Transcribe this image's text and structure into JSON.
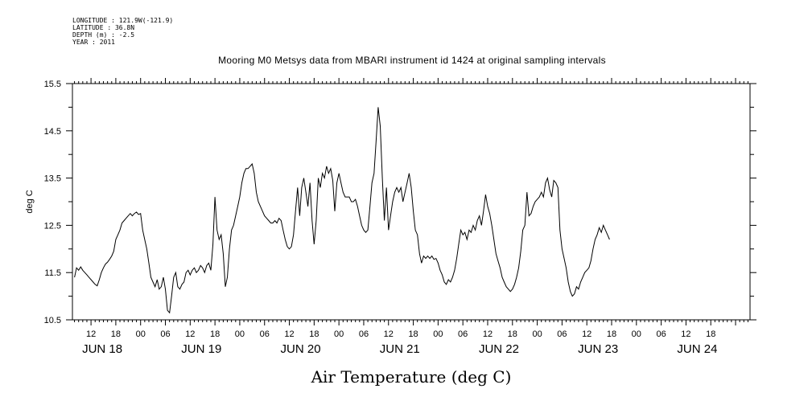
{
  "metadata": {
    "longitude": "LONGITUDE : 121.9W(-121.9)",
    "latitude": "LATITUDE : 36.8N",
    "depth": "DEPTH (m) : -2.5",
    "year": "YEAR : 2011"
  },
  "chart_data": {
    "type": "line",
    "title": "Mooring M0 Metsys data from MBARI instrument id 1424 at original sampling intervals",
    "xlabel": "Air Temperature (deg C)",
    "ylabel": "deg C",
    "ylim": [
      10.5,
      15.5
    ],
    "yticks": [
      "10.5",
      "11.5",
      "12.5",
      "13.5",
      "14.5",
      "15.5"
    ],
    "x_units": "hours since 2011-06-18 00:00",
    "xlim": [
      7.5,
      171.5
    ],
    "hour_tick_labels": [
      {
        "x": 12,
        "label": "12"
      },
      {
        "x": 18,
        "label": "18"
      },
      {
        "x": 24,
        "label": "00"
      },
      {
        "x": 30,
        "label": "06"
      },
      {
        "x": 36,
        "label": "12"
      },
      {
        "x": 42,
        "label": "18"
      },
      {
        "x": 48,
        "label": "00"
      },
      {
        "x": 54,
        "label": "06"
      },
      {
        "x": 60,
        "label": "12"
      },
      {
        "x": 66,
        "label": "18"
      },
      {
        "x": 72,
        "label": "00"
      },
      {
        "x": 78,
        "label": "06"
      },
      {
        "x": 84,
        "label": "12"
      },
      {
        "x": 90,
        "label": "18"
      },
      {
        "x": 96,
        "label": "00"
      },
      {
        "x": 102,
        "label": "06"
      },
      {
        "x": 108,
        "label": "12"
      },
      {
        "x": 114,
        "label": "18"
      },
      {
        "x": 120,
        "label": "00"
      },
      {
        "x": 126,
        "label": "06"
      },
      {
        "x": 132,
        "label": "12"
      },
      {
        "x": 138,
        "label": "18"
      },
      {
        "x": 144,
        "label": "00"
      },
      {
        "x": 150,
        "label": "06"
      },
      {
        "x": 156,
        "label": "12"
      },
      {
        "x": 162,
        "label": "18"
      }
    ],
    "day_labels": [
      {
        "x": 12,
        "label": "JUN 18"
      },
      {
        "x": 36,
        "label": "JUN 19"
      },
      {
        "x": 60,
        "label": "JUN 20"
      },
      {
        "x": 84,
        "label": "JUN 21"
      },
      {
        "x": 108,
        "label": "JUN 22"
      },
      {
        "x": 132,
        "label": "JUN 23"
      },
      {
        "x": 156,
        "label": "JUN 24"
      }
    ],
    "series": [
      {
        "color": "#000000",
        "points": [
          [
            8,
            11.4
          ],
          [
            8.5,
            11.6
          ],
          [
            9,
            11.55
          ],
          [
            9.5,
            11.62
          ],
          [
            10,
            11.55
          ],
          [
            10.5,
            11.5
          ],
          [
            11,
            11.45
          ],
          [
            11.5,
            11.4
          ],
          [
            12,
            11.35
          ],
          [
            12.5,
            11.3
          ],
          [
            13,
            11.25
          ],
          [
            13.5,
            11.22
          ],
          [
            14,
            11.35
          ],
          [
            14.5,
            11.5
          ],
          [
            15,
            11.6
          ],
          [
            15.5,
            11.68
          ],
          [
            16,
            11.72
          ],
          [
            16.5,
            11.78
          ],
          [
            17,
            11.85
          ],
          [
            17.5,
            11.95
          ],
          [
            18,
            12.2
          ],
          [
            18.5,
            12.3
          ],
          [
            19,
            12.4
          ],
          [
            19.5,
            12.55
          ],
          [
            20,
            12.6
          ],
          [
            20.5,
            12.65
          ],
          [
            21,
            12.7
          ],
          [
            21.5,
            12.75
          ],
          [
            22,
            12.7
          ],
          [
            22.5,
            12.75
          ],
          [
            23,
            12.78
          ],
          [
            23.5,
            12.73
          ],
          [
            24,
            12.75
          ],
          [
            24.5,
            12.4
          ],
          [
            25,
            12.2
          ],
          [
            25.5,
            12.0
          ],
          [
            26,
            11.7
          ],
          [
            26.5,
            11.4
          ],
          [
            27,
            11.3
          ],
          [
            27.5,
            11.2
          ],
          [
            28,
            11.35
          ],
          [
            28.5,
            11.15
          ],
          [
            29,
            11.2
          ],
          [
            29.5,
            11.4
          ],
          [
            30,
            11.15
          ],
          [
            30.5,
            10.7
          ],
          [
            31,
            10.65
          ],
          [
            31.5,
            11.0
          ],
          [
            32,
            11.4
          ],
          [
            32.5,
            11.5
          ],
          [
            33,
            11.2
          ],
          [
            33.5,
            11.15
          ],
          [
            34,
            11.25
          ],
          [
            34.5,
            11.3
          ],
          [
            35,
            11.5
          ],
          [
            35.5,
            11.55
          ],
          [
            36,
            11.45
          ],
          [
            36.5,
            11.55
          ],
          [
            37,
            11.6
          ],
          [
            37.5,
            11.5
          ],
          [
            38,
            11.55
          ],
          [
            38.5,
            11.65
          ],
          [
            39,
            11.6
          ],
          [
            39.5,
            11.5
          ],
          [
            40,
            11.65
          ],
          [
            40.5,
            11.7
          ],
          [
            41,
            11.55
          ],
          [
            41.5,
            12.1
          ],
          [
            42,
            13.1
          ],
          [
            42.5,
            12.4
          ],
          [
            43,
            12.2
          ],
          [
            43.5,
            12.3
          ],
          [
            44,
            11.9
          ],
          [
            44.5,
            11.2
          ],
          [
            45,
            11.4
          ],
          [
            45.5,
            12.0
          ],
          [
            46,
            12.4
          ],
          [
            46.5,
            12.5
          ],
          [
            47,
            12.7
          ],
          [
            47.5,
            12.9
          ],
          [
            48,
            13.1
          ],
          [
            48.5,
            13.4
          ],
          [
            49,
            13.6
          ],
          [
            49.5,
            13.7
          ],
          [
            50,
            13.7
          ],
          [
            50.5,
            13.75
          ],
          [
            51,
            13.8
          ],
          [
            51.5,
            13.6
          ],
          [
            52,
            13.2
          ],
          [
            52.5,
            13.0
          ],
          [
            53,
            12.9
          ],
          [
            53.5,
            12.8
          ],
          [
            54,
            12.7
          ],
          [
            54.5,
            12.65
          ],
          [
            55,
            12.6
          ],
          [
            55.5,
            12.55
          ],
          [
            56,
            12.55
          ],
          [
            56.5,
            12.6
          ],
          [
            57,
            12.55
          ],
          [
            57.5,
            12.65
          ],
          [
            58,
            12.6
          ],
          [
            58.5,
            12.4
          ],
          [
            59,
            12.2
          ],
          [
            59.5,
            12.05
          ],
          [
            60,
            12.0
          ],
          [
            60.5,
            12.05
          ],
          [
            61,
            12.3
          ],
          [
            61.5,
            12.8
          ],
          [
            62,
            13.3
          ],
          [
            62.5,
            12.7
          ],
          [
            63,
            13.3
          ],
          [
            63.5,
            13.5
          ],
          [
            64,
            13.2
          ],
          [
            64.5,
            12.9
          ],
          [
            65,
            13.4
          ],
          [
            65.5,
            12.6
          ],
          [
            66,
            12.1
          ],
          [
            66.5,
            12.6
          ],
          [
            67,
            13.5
          ],
          [
            67.5,
            13.3
          ],
          [
            68,
            13.6
          ],
          [
            68.5,
            13.5
          ],
          [
            69,
            13.75
          ],
          [
            69.5,
            13.6
          ],
          [
            70,
            13.7
          ],
          [
            70.5,
            13.45
          ],
          [
            71,
            12.8
          ],
          [
            71.5,
            13.4
          ],
          [
            72,
            13.6
          ],
          [
            72.5,
            13.4
          ],
          [
            73,
            13.2
          ],
          [
            73.5,
            13.1
          ],
          [
            74,
            13.1
          ],
          [
            74.5,
            13.1
          ],
          [
            75,
            13.0
          ],
          [
            75.5,
            13.0
          ],
          [
            76,
            13.05
          ],
          [
            76.5,
            12.9
          ],
          [
            77,
            12.7
          ],
          [
            77.5,
            12.5
          ],
          [
            78,
            12.4
          ],
          [
            78.5,
            12.35
          ],
          [
            79,
            12.4
          ],
          [
            79.5,
            12.9
          ],
          [
            80,
            13.4
          ],
          [
            80.5,
            13.6
          ],
          [
            81,
            14.3
          ],
          [
            81.5,
            15.0
          ],
          [
            82,
            14.6
          ],
          [
            82.5,
            13.5
          ],
          [
            83,
            12.6
          ],
          [
            83.5,
            13.3
          ],
          [
            84,
            12.4
          ],
          [
            84.5,
            12.7
          ],
          [
            85,
            13.0
          ],
          [
            85.5,
            13.2
          ],
          [
            86,
            13.3
          ],
          [
            86.5,
            13.2
          ],
          [
            87,
            13.3
          ],
          [
            87.5,
            13.0
          ],
          [
            88,
            13.2
          ],
          [
            88.5,
            13.4
          ],
          [
            89,
            13.6
          ],
          [
            89.5,
            13.3
          ],
          [
            90,
            12.8
          ],
          [
            90.5,
            12.4
          ],
          [
            91,
            12.3
          ],
          [
            91.5,
            11.9
          ],
          [
            92,
            11.7
          ],
          [
            92.5,
            11.85
          ],
          [
            93,
            11.8
          ],
          [
            93.5,
            11.85
          ],
          [
            94,
            11.8
          ],
          [
            94.5,
            11.85
          ],
          [
            95,
            11.78
          ],
          [
            95.5,
            11.8
          ],
          [
            96,
            11.7
          ],
          [
            96.5,
            11.55
          ],
          [
            97,
            11.45
          ],
          [
            97.5,
            11.3
          ],
          [
            98,
            11.25
          ],
          [
            98.5,
            11.35
          ],
          [
            99,
            11.3
          ],
          [
            99.5,
            11.4
          ],
          [
            100,
            11.55
          ],
          [
            100.5,
            11.8
          ],
          [
            101,
            12.1
          ],
          [
            101.5,
            12.4
          ],
          [
            102,
            12.3
          ],
          [
            102.5,
            12.35
          ],
          [
            103,
            12.2
          ],
          [
            103.5,
            12.4
          ],
          [
            104,
            12.35
          ],
          [
            104.5,
            12.5
          ],
          [
            105,
            12.4
          ],
          [
            105.5,
            12.6
          ],
          [
            106,
            12.7
          ],
          [
            106.5,
            12.5
          ],
          [
            107,
            12.8
          ],
          [
            107.5,
            13.15
          ],
          [
            108,
            12.9
          ],
          [
            108.5,
            12.75
          ],
          [
            109,
            12.5
          ],
          [
            109.5,
            12.2
          ],
          [
            110,
            11.9
          ],
          [
            110.5,
            11.75
          ],
          [
            111,
            11.6
          ],
          [
            111.5,
            11.4
          ],
          [
            112,
            11.3
          ],
          [
            112.5,
            11.2
          ],
          [
            113,
            11.15
          ],
          [
            113.5,
            11.1
          ],
          [
            114,
            11.15
          ],
          [
            114.5,
            11.25
          ],
          [
            115,
            11.4
          ],
          [
            115.5,
            11.6
          ],
          [
            116,
            11.95
          ],
          [
            116.5,
            12.4
          ],
          [
            117,
            12.5
          ],
          [
            117.5,
            13.2
          ],
          [
            118,
            12.7
          ],
          [
            118.5,
            12.75
          ],
          [
            119,
            12.9
          ],
          [
            119.5,
            13.0
          ],
          [
            120,
            13.05
          ],
          [
            120.5,
            13.1
          ],
          [
            121,
            13.2
          ],
          [
            121.5,
            13.1
          ],
          [
            122,
            13.4
          ],
          [
            122.5,
            13.5
          ],
          [
            123,
            13.25
          ],
          [
            123.5,
            13.1
          ],
          [
            124,
            13.45
          ],
          [
            124.5,
            13.4
          ],
          [
            125,
            13.3
          ],
          [
            125.5,
            12.4
          ],
          [
            126,
            12.0
          ],
          [
            126.5,
            11.8
          ],
          [
            127,
            11.6
          ],
          [
            127.5,
            11.3
          ],
          [
            128,
            11.1
          ],
          [
            128.5,
            11.0
          ],
          [
            129,
            11.05
          ],
          [
            129.5,
            11.2
          ],
          [
            130,
            11.15
          ],
          [
            130.5,
            11.3
          ],
          [
            131,
            11.4
          ],
          [
            131.5,
            11.5
          ],
          [
            132,
            11.55
          ],
          [
            132.5,
            11.6
          ],
          [
            133,
            11.75
          ],
          [
            133.5,
            12.0
          ],
          [
            134,
            12.2
          ],
          [
            134.5,
            12.3
          ],
          [
            135,
            12.45
          ],
          [
            135.5,
            12.35
          ],
          [
            136,
            12.5
          ],
          [
            136.5,
            12.4
          ],
          [
            137,
            12.3
          ],
          [
            137.5,
            12.2
          ]
        ]
      }
    ]
  }
}
